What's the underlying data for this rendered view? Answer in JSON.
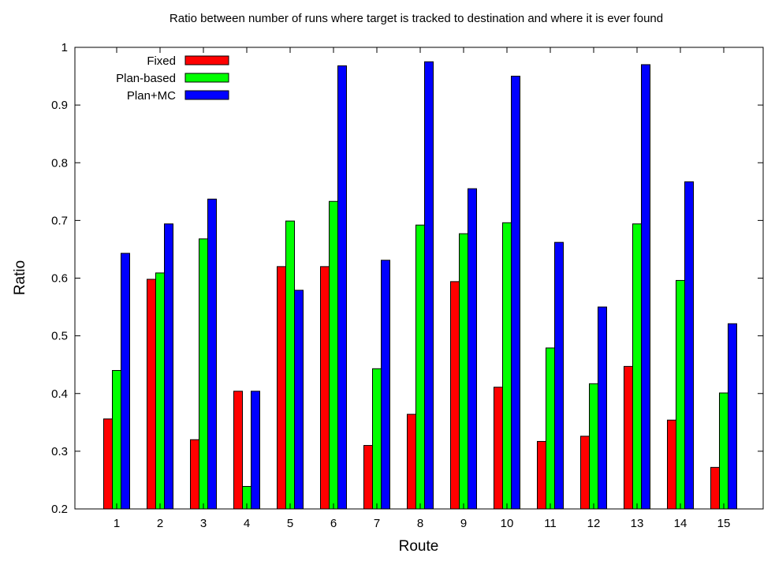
{
  "chart_data": {
    "type": "bar",
    "title": "Ratio between number of runs where target is tracked to destination and where it is ever found",
    "xlabel": "Route",
    "ylabel": "Ratio",
    "ylim": [
      0.2,
      1.0
    ],
    "yticks": [
      "0.2",
      "0.3",
      "0.4",
      "0.5",
      "0.6",
      "0.7",
      "0.8",
      "0.9",
      "1"
    ],
    "categories": [
      "1",
      "2",
      "3",
      "4",
      "5",
      "6",
      "7",
      "8",
      "9",
      "10",
      "11",
      "12",
      "13",
      "14",
      "15"
    ],
    "grid": false,
    "legend_position": "top-left",
    "series": [
      {
        "name": "Fixed",
        "color": "#ff0000",
        "values": [
          0.356,
          0.598,
          0.32,
          0.404,
          0.62,
          0.62,
          0.31,
          0.364,
          0.594,
          0.411,
          0.317,
          0.326,
          0.447,
          0.354,
          0.272
        ]
      },
      {
        "name": "Plan-based",
        "color": "#00ff00",
        "values": [
          0.44,
          0.609,
          0.668,
          0.239,
          0.699,
          0.733,
          0.443,
          0.692,
          0.677,
          0.696,
          0.479,
          0.417,
          0.694,
          0.596,
          0.401
        ]
      },
      {
        "name": "Plan+MC",
        "color": "#0000ff",
        "values": [
          0.643,
          0.694,
          0.737,
          0.404,
          0.579,
          0.968,
          0.631,
          0.975,
          0.755,
          0.95,
          0.662,
          0.55,
          0.97,
          0.767,
          0.521
        ]
      }
    ]
  }
}
